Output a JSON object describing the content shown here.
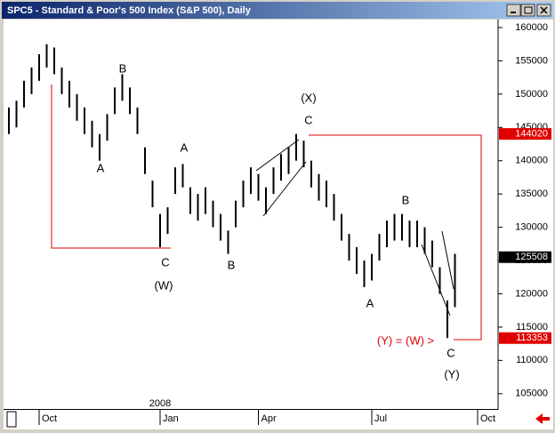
{
  "chart_data": {
    "type": "range",
    "title": "SPC5 - Standard & Poor's 500 Index (S&P 500), Daily",
    "categories": [
      null,
      null,
      null,
      null,
      "Oct",
      null,
      null,
      null,
      null,
      null,
      null,
      null,
      null,
      null,
      null,
      null,
      null,
      null,
      null,
      null,
      "Jan",
      null,
      null,
      null,
      null,
      null,
      null,
      null,
      null,
      null,
      null,
      null,
      null,
      "Apr",
      null,
      null,
      null,
      null,
      null,
      null,
      null,
      null,
      null,
      null,
      null,
      null,
      null,
      null,
      "Jul",
      null,
      null,
      null,
      null,
      null,
      null,
      null,
      null,
      null,
      null,
      null,
      null,
      null,
      "Oct",
      null
    ],
    "year_label": "2008",
    "high": [
      148000,
      149000,
      152000,
      154000,
      156000,
      157500,
      157000,
      154000,
      152000,
      150000,
      148000,
      146000,
      144000,
      147000,
      151000,
      153000,
      151000,
      148000,
      142000,
      137000,
      132000,
      133000,
      139000,
      139500,
      136000,
      135000,
      136000,
      134000,
      132000,
      129500,
      134000,
      137000,
      139000,
      138000,
      136000,
      139000,
      141000,
      142000,
      144020,
      143000,
      140000,
      138000,
      137000,
      135000,
      132000,
      129000,
      127000,
      125000,
      126000,
      129000,
      131000,
      132000,
      132000,
      131000,
      131000,
      130000,
      128000,
      124000,
      119000,
      126000,
      null,
      null,
      null,
      null
    ],
    "low": [
      144000,
      145000,
      148000,
      150000,
      152000,
      154000,
      153000,
      150000,
      148000,
      146000,
      144000,
      142000,
      140000,
      143000,
      147000,
      149000,
      147000,
      144000,
      138000,
      133000,
      127000,
      129000,
      135000,
      136000,
      132000,
      131000,
      132000,
      130000,
      128000,
      126000,
      130000,
      133000,
      135000,
      134000,
      132000,
      135000,
      137000,
      138000,
      140000,
      139000,
      136000,
      134000,
      133000,
      131000,
      128000,
      125000,
      123000,
      121000,
      122000,
      125000,
      127000,
      128000,
      128000,
      127000,
      127000,
      126000,
      124000,
      120000,
      113353,
      118000,
      null,
      null,
      null,
      null
    ],
    "color": "#000000",
    "ylim": [
      102700,
      161200
    ],
    "yticks": [
      105000,
      110000,
      115000,
      120000,
      125000,
      130000,
      135000,
      140000,
      145000,
      150000,
      155000,
      160000
    ],
    "price_labels": [
      {
        "value": 144020,
        "color": "#e00000"
      },
      {
        "value": 125508,
        "color": "#000000"
      },
      {
        "value": 113353,
        "color": "#e00000"
      }
    ],
    "annotations": [
      "A",
      "B",
      "C",
      "(W)",
      "A",
      "B",
      "(X)",
      "C",
      "A",
      "B",
      "C",
      "(Y)",
      "(Y) = (W) >"
    ]
  }
}
